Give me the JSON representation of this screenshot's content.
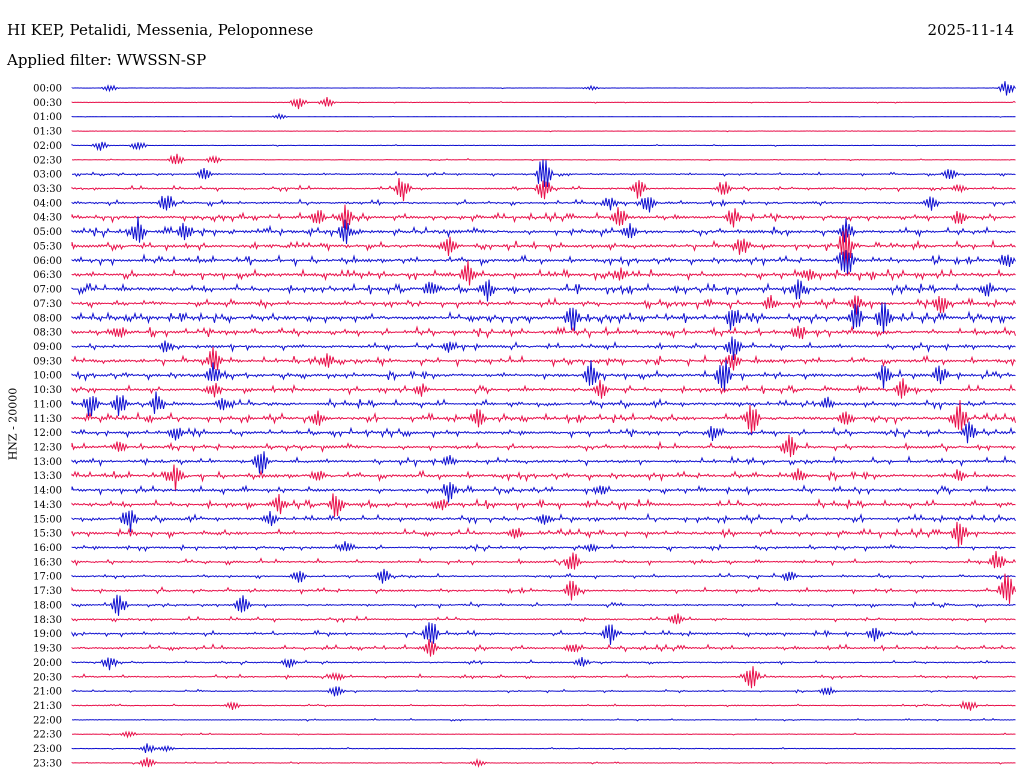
{
  "header": {
    "station": "HI KEP, Petalidi, Messenia, Peloponnese",
    "date": "2025-11-14",
    "filter": "Applied filter: WWSSN-SP"
  },
  "chart_data": {
    "type": "line",
    "title": "HI KEP, Petalidi, Messenia, Peloponnese",
    "subtitle": "Applied filter: WWSSN-SP",
    "ylabel": "HNZ - 20000",
    "xlabel": "",
    "colors": [
      "#1010d0",
      "#e8104a"
    ],
    "rows": [
      {
        "label": "00:00",
        "activity": 0.05,
        "events": [
          [
            0.04,
            0.3
          ],
          [
            0.55,
            0.2
          ],
          [
            0.99,
            0.6
          ]
        ]
      },
      {
        "label": "00:30",
        "activity": 0.08,
        "events": [
          [
            0.24,
            0.5
          ],
          [
            0.27,
            0.4
          ]
        ]
      },
      {
        "label": "01:00",
        "activity": 0.05,
        "events": [
          [
            0.22,
            0.2
          ]
        ]
      },
      {
        "label": "01:30",
        "activity": 0.06,
        "events": []
      },
      {
        "label": "02:00",
        "activity": 0.08,
        "events": [
          [
            0.03,
            0.4
          ],
          [
            0.07,
            0.4
          ]
        ]
      },
      {
        "label": "02:30",
        "activity": 0.1,
        "events": [
          [
            0.11,
            0.5
          ],
          [
            0.15,
            0.3
          ]
        ]
      },
      {
        "label": "03:00",
        "activity": 0.2,
        "events": [
          [
            0.14,
            0.5
          ],
          [
            0.5,
            1.6
          ],
          [
            0.93,
            0.5
          ]
        ]
      },
      {
        "label": "03:30",
        "activity": 0.25,
        "events": [
          [
            0.35,
            1.2
          ],
          [
            0.5,
            1.0
          ],
          [
            0.6,
            0.8
          ],
          [
            0.69,
            0.7
          ],
          [
            0.94,
            0.4
          ]
        ]
      },
      {
        "label": "04:00",
        "activity": 0.3,
        "events": [
          [
            0.1,
            0.9
          ],
          [
            0.57,
            0.6
          ],
          [
            0.61,
            1.0
          ],
          [
            0.91,
            0.6
          ]
        ]
      },
      {
        "label": "04:30",
        "activity": 0.4,
        "events": [
          [
            0.26,
            0.8
          ],
          [
            0.29,
            1.0
          ],
          [
            0.58,
            0.9
          ],
          [
            0.7,
            0.9
          ],
          [
            0.94,
            0.8
          ]
        ]
      },
      {
        "label": "05:00",
        "activity": 0.45,
        "events": [
          [
            0.07,
            1.1
          ],
          [
            0.12,
            0.9
          ],
          [
            0.29,
            1.0
          ],
          [
            0.59,
            0.7
          ],
          [
            0.82,
            1.0
          ]
        ]
      },
      {
        "label": "05:30",
        "activity": 0.45,
        "events": [
          [
            0.4,
            0.8
          ],
          [
            0.71,
            1.0
          ],
          [
            0.82,
            1.8
          ]
        ]
      },
      {
        "label": "06:00",
        "activity": 0.45,
        "events": [
          [
            0.82,
            1.6
          ],
          [
            0.99,
            0.7
          ]
        ]
      },
      {
        "label": "06:30",
        "activity": 0.5,
        "events": [
          [
            0.42,
            1.1
          ],
          [
            0.58,
            0.6
          ],
          [
            0.78,
            0.6
          ]
        ]
      },
      {
        "label": "07:00",
        "activity": 0.5,
        "events": [
          [
            0.38,
            0.8
          ],
          [
            0.44,
            1.0
          ],
          [
            0.77,
            1.0
          ],
          [
            0.97,
            0.7
          ]
        ]
      },
      {
        "label": "07:30",
        "activity": 0.45,
        "events": [
          [
            0.74,
            0.7
          ],
          [
            0.83,
            0.9
          ],
          [
            0.92,
            1.0
          ]
        ]
      },
      {
        "label": "08:00",
        "activity": 0.5,
        "events": [
          [
            0.53,
            1.2
          ],
          [
            0.7,
            1.2
          ],
          [
            0.83,
            1.2
          ],
          [
            0.86,
            1.6
          ]
        ]
      },
      {
        "label": "08:30",
        "activity": 0.45,
        "events": [
          [
            0.05,
            0.6
          ],
          [
            0.77,
            0.8
          ]
        ]
      },
      {
        "label": "09:00",
        "activity": 0.4,
        "events": [
          [
            0.1,
            0.6
          ],
          [
            0.4,
            0.5
          ],
          [
            0.7,
            1.3
          ]
        ]
      },
      {
        "label": "09:30",
        "activity": 0.45,
        "events": [
          [
            0.15,
            1.2
          ],
          [
            0.27,
            0.6
          ],
          [
            0.7,
            0.9
          ]
        ]
      },
      {
        "label": "10:00",
        "activity": 0.45,
        "events": [
          [
            0.15,
            1.0
          ],
          [
            0.55,
            1.1
          ],
          [
            0.69,
            1.5
          ],
          [
            0.86,
            1.0
          ],
          [
            0.92,
            1.0
          ]
        ]
      },
      {
        "label": "10:30",
        "activity": 0.4,
        "events": [
          [
            0.15,
            0.8
          ],
          [
            0.37,
            0.6
          ],
          [
            0.56,
            0.8
          ],
          [
            0.88,
            0.9
          ]
        ]
      },
      {
        "label": "11:00",
        "activity": 0.45,
        "events": [
          [
            0.02,
            1.2
          ],
          [
            0.05,
            1.0
          ],
          [
            0.09,
            1.0
          ],
          [
            0.16,
            0.6
          ],
          [
            0.8,
            0.6
          ]
        ]
      },
      {
        "label": "11:30",
        "activity": 0.45,
        "events": [
          [
            0.26,
            0.8
          ],
          [
            0.43,
            0.8
          ],
          [
            0.72,
            1.3
          ],
          [
            0.82,
            0.9
          ],
          [
            0.94,
            1.4
          ]
        ]
      },
      {
        "label": "12:00",
        "activity": 0.4,
        "events": [
          [
            0.11,
            0.6
          ],
          [
            0.68,
            0.7
          ],
          [
            0.95,
            0.9
          ]
        ]
      },
      {
        "label": "12:30",
        "activity": 0.4,
        "events": [
          [
            0.05,
            0.5
          ],
          [
            0.76,
            1.0
          ]
        ]
      },
      {
        "label": "13:00",
        "activity": 0.4,
        "events": [
          [
            0.2,
            1.2
          ],
          [
            0.4,
            0.5
          ]
        ]
      },
      {
        "label": "13:30",
        "activity": 0.45,
        "events": [
          [
            0.11,
            1.2
          ],
          [
            0.26,
            0.6
          ],
          [
            0.77,
            0.7
          ],
          [
            0.94,
            0.6
          ]
        ]
      },
      {
        "label": "14:00",
        "activity": 0.4,
        "events": [
          [
            0.4,
            1.0
          ],
          [
            0.56,
            0.5
          ]
        ]
      },
      {
        "label": "14:30",
        "activity": 0.45,
        "events": [
          [
            0.22,
            0.8
          ],
          [
            0.28,
            1.2
          ],
          [
            0.39,
            0.7
          ]
        ]
      },
      {
        "label": "15:00",
        "activity": 0.4,
        "events": [
          [
            0.06,
            1.2
          ],
          [
            0.21,
            0.6
          ],
          [
            0.5,
            0.5
          ]
        ]
      },
      {
        "label": "15:30",
        "activity": 0.4,
        "events": [
          [
            0.47,
            0.6
          ],
          [
            0.94,
            1.2
          ]
        ]
      },
      {
        "label": "16:00",
        "activity": 0.3,
        "events": [
          [
            0.29,
            0.5
          ],
          [
            0.55,
            0.4
          ]
        ]
      },
      {
        "label": "16:30",
        "activity": 0.3,
        "events": [
          [
            0.53,
            0.9
          ],
          [
            0.98,
            0.9
          ]
        ]
      },
      {
        "label": "17:00",
        "activity": 0.25,
        "events": [
          [
            0.24,
            0.6
          ],
          [
            0.33,
            0.6
          ],
          [
            0.76,
            0.5
          ]
        ]
      },
      {
        "label": "17:30",
        "activity": 0.3,
        "events": [
          [
            0.53,
            1.0
          ],
          [
            0.99,
            1.6
          ]
        ]
      },
      {
        "label": "18:00",
        "activity": 0.25,
        "events": [
          [
            0.05,
            1.0
          ],
          [
            0.18,
            0.8
          ]
        ]
      },
      {
        "label": "18:30",
        "activity": 0.25,
        "events": [
          [
            0.64,
            0.6
          ]
        ]
      },
      {
        "label": "19:00",
        "activity": 0.3,
        "events": [
          [
            0.38,
            1.2
          ],
          [
            0.57,
            1.0
          ],
          [
            0.85,
            0.6
          ]
        ]
      },
      {
        "label": "19:30",
        "activity": 0.3,
        "events": [
          [
            0.38,
            0.8
          ],
          [
            0.53,
            0.5
          ]
        ]
      },
      {
        "label": "20:00",
        "activity": 0.2,
        "events": [
          [
            0.04,
            0.6
          ],
          [
            0.23,
            0.5
          ],
          [
            0.54,
            0.4
          ]
        ]
      },
      {
        "label": "20:30",
        "activity": 0.25,
        "events": [
          [
            0.72,
            1.0
          ],
          [
            0.28,
            0.4
          ]
        ]
      },
      {
        "label": "21:00",
        "activity": 0.15,
        "events": [
          [
            0.28,
            0.5
          ],
          [
            0.8,
            0.4
          ]
        ]
      },
      {
        "label": "21:30",
        "activity": 0.15,
        "events": [
          [
            0.17,
            0.4
          ],
          [
            0.95,
            0.6
          ]
        ]
      },
      {
        "label": "22:00",
        "activity": 0.12,
        "events": []
      },
      {
        "label": "22:30",
        "activity": 0.1,
        "events": [
          [
            0.06,
            0.3
          ]
        ]
      },
      {
        "label": "23:00",
        "activity": 0.1,
        "events": [
          [
            0.08,
            0.4
          ],
          [
            0.1,
            0.3
          ]
        ]
      },
      {
        "label": "23:30",
        "activity": 0.1,
        "events": [
          [
            0.08,
            0.5
          ],
          [
            0.43,
            0.3
          ]
        ]
      }
    ],
    "grid": false,
    "legend": "none"
  }
}
